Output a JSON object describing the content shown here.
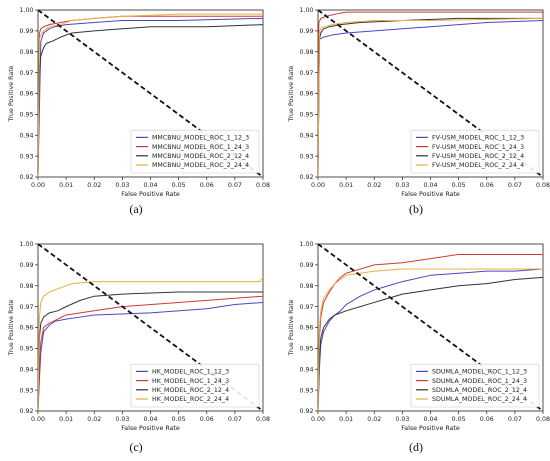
{
  "chart_data": [
    {
      "type": "line",
      "panel": "a",
      "caption": "(a)",
      "xlabel": "False Positive Rate",
      "ylabel": "True Positive Rate",
      "xlim": [
        0.0,
        0.08
      ],
      "ylim": [
        0.92,
        1.0
      ],
      "xticks": [
        0.0,
        0.01,
        0.02,
        0.03,
        0.04,
        0.05,
        0.06,
        0.07,
        0.08
      ],
      "xtick_labels": [
        "0.00",
        "0.01",
        "0.02",
        "0.03",
        "0.04",
        "0.05",
        "0.06",
        "0.07",
        "0.08"
      ],
      "yticks": [
        0.92,
        0.93,
        0.94,
        0.95,
        0.96,
        0.97,
        0.98,
        0.99,
        1.0
      ],
      "ytick_labels": [
        "0.92",
        "0.93",
        "0.94",
        "0.95",
        "0.96",
        "0.97",
        "0.98",
        "0.99",
        "1.00"
      ],
      "legend_position": "lower-right",
      "reference_line": {
        "x": [
          0.0,
          0.08
        ],
        "y": [
          1.0,
          0.92
        ],
        "style": "dashed",
        "color": "#111111"
      },
      "series": [
        {
          "name": "MMCBNU_MODEL_ROC_1_12_3",
          "color": "#4848c0",
          "x": [
            0.0,
            0.001,
            0.002,
            0.004,
            0.006,
            0.01,
            0.02,
            0.03,
            0.05,
            0.08
          ],
          "y": [
            0.92,
            0.985,
            0.989,
            0.991,
            0.992,
            0.993,
            0.994,
            0.995,
            0.995,
            0.996
          ]
        },
        {
          "name": "MMCBNU_MODEL_ROC_1_24_3",
          "color": "#d03838",
          "x": [
            0.0,
            0.0005,
            0.001,
            0.002,
            0.004,
            0.008,
            0.012,
            0.02,
            0.03,
            0.05,
            0.08
          ],
          "y": [
            0.92,
            0.989,
            0.991,
            0.992,
            0.993,
            0.994,
            0.995,
            0.996,
            0.997,
            0.997,
            0.997
          ]
        },
        {
          "name": "MMCBNU_MODEL_ROC_2_12_4",
          "color": "#333333",
          "x": [
            0.0,
            0.0005,
            0.001,
            0.002,
            0.003,
            0.005,
            0.008,
            0.012,
            0.02,
            0.03,
            0.04,
            0.06,
            0.08
          ],
          "y": [
            0.92,
            0.969,
            0.978,
            0.982,
            0.984,
            0.985,
            0.987,
            0.989,
            0.99,
            0.991,
            0.992,
            0.992,
            0.993
          ]
        },
        {
          "name": "MMCBNU_MODEL_ROC_2_24_4",
          "color": "#e8b040",
          "x": [
            0.0,
            0.0005,
            0.001,
            0.002,
            0.004,
            0.008,
            0.012,
            0.02,
            0.03,
            0.05,
            0.08
          ],
          "y": [
            0.92,
            0.986,
            0.988,
            0.99,
            0.992,
            0.993,
            0.995,
            0.996,
            0.997,
            0.998,
            0.998
          ]
        }
      ]
    },
    {
      "type": "line",
      "panel": "b",
      "caption": "(b)",
      "xlabel": "False Positive Rate",
      "ylabel": "True Positive Rate",
      "xlim": [
        0.0,
        0.08
      ],
      "ylim": [
        0.92,
        1.0
      ],
      "xticks": [
        0.0,
        0.01,
        0.02,
        0.03,
        0.04,
        0.05,
        0.06,
        0.07,
        0.08
      ],
      "xtick_labels": [
        "0.00",
        "0.01",
        "0.02",
        "0.03",
        "0.04",
        "0.05",
        "0.06",
        "0.07",
        "0.08"
      ],
      "yticks": [
        0.92,
        0.93,
        0.94,
        0.95,
        0.96,
        0.97,
        0.98,
        0.99,
        1.0
      ],
      "ytick_labels": [
        "0.92",
        "0.93",
        "0.94",
        "0.95",
        "0.96",
        "0.97",
        "0.98",
        "0.99",
        "1.00"
      ],
      "legend_position": "lower-right",
      "reference_line": {
        "x": [
          0.0,
          0.08
        ],
        "y": [
          1.0,
          0.92
        ],
        "style": "dashed",
        "color": "#111111"
      },
      "series": [
        {
          "name": "FV-USM_MODEL_ROC_1_12_3",
          "color": "#4848c0",
          "x": [
            0.0,
            0.0005,
            0.002,
            0.005,
            0.01,
            0.02,
            0.03,
            0.04,
            0.05,
            0.06,
            0.08
          ],
          "y": [
            0.92,
            0.986,
            0.987,
            0.988,
            0.989,
            0.99,
            0.991,
            0.992,
            0.993,
            0.994,
            0.995
          ]
        },
        {
          "name": "FV-USM_MODEL_ROC_1_24_3",
          "color": "#d03838",
          "x": [
            0.0,
            0.0003,
            0.001,
            0.003,
            0.006,
            0.01,
            0.02,
            0.04,
            0.08
          ],
          "y": [
            0.92,
            0.994,
            0.996,
            0.997,
            0.998,
            0.999,
            0.999,
            0.999,
            0.999
          ]
        },
        {
          "name": "FV-USM_MODEL_ROC_2_12_4",
          "color": "#333333",
          "x": [
            0.0,
            0.0005,
            0.001,
            0.002,
            0.004,
            0.008,
            0.015,
            0.03,
            0.05,
            0.08
          ],
          "y": [
            0.92,
            0.986,
            0.989,
            0.991,
            0.992,
            0.993,
            0.994,
            0.995,
            0.996,
            0.996
          ]
        },
        {
          "name": "FV-USM_MODEL_ROC_2_24_4",
          "color": "#e8b040",
          "x": [
            0.0,
            0.0005,
            0.001,
            0.002,
            0.005,
            0.01,
            0.02,
            0.04,
            0.08
          ],
          "y": [
            0.92,
            0.989,
            0.991,
            0.992,
            0.993,
            0.994,
            0.995,
            0.995,
            0.996
          ]
        }
      ]
    },
    {
      "type": "line",
      "panel": "c",
      "caption": "(c)",
      "xlabel": "False Positive Rate",
      "ylabel": "True Positive Rate",
      "xlim": [
        0.0,
        0.08
      ],
      "ylim": [
        0.92,
        1.0
      ],
      "xticks": [
        0.0,
        0.01,
        0.02,
        0.03,
        0.04,
        0.05,
        0.06,
        0.07,
        0.08
      ],
      "xtick_labels": [
        "0.00",
        "0.01",
        "0.02",
        "0.03",
        "0.04",
        "0.05",
        "0.06",
        "0.07",
        "0.08"
      ],
      "yticks": [
        0.92,
        0.93,
        0.94,
        0.95,
        0.96,
        0.97,
        0.98,
        0.99,
        1.0
      ],
      "ytick_labels": [
        "0.92",
        "0.93",
        "0.94",
        "0.95",
        "0.96",
        "0.97",
        "0.98",
        "0.99",
        "1.00"
      ],
      "legend_position": "lower-right",
      "reference_line": {
        "x": [
          0.0,
          0.08
        ],
        "y": [
          1.0,
          0.92
        ],
        "style": "dashed",
        "color": "#111111"
      },
      "series": [
        {
          "name": "HK_MODEL_ROC_1_12_3",
          "color": "#4848c0",
          "x": [
            0.0,
            0.0005,
            0.001,
            0.002,
            0.004,
            0.006,
            0.01,
            0.015,
            0.02,
            0.04,
            0.06,
            0.07,
            0.08
          ],
          "y": [
            0.92,
            0.935,
            0.948,
            0.958,
            0.961,
            0.963,
            0.964,
            0.965,
            0.966,
            0.967,
            0.969,
            0.971,
            0.972
          ]
        },
        {
          "name": "HK_MODEL_ROC_1_24_3",
          "color": "#d03838",
          "x": [
            0.0,
            0.0005,
            0.001,
            0.002,
            0.004,
            0.007,
            0.01,
            0.015,
            0.02,
            0.03,
            0.05,
            0.07,
            0.08
          ],
          "y": [
            0.92,
            0.94,
            0.953,
            0.96,
            0.962,
            0.964,
            0.966,
            0.967,
            0.968,
            0.97,
            0.972,
            0.974,
            0.975
          ]
        },
        {
          "name": "HK_MODEL_ROC_2_12_4",
          "color": "#333333",
          "x": [
            0.0,
            0.0005,
            0.001,
            0.002,
            0.004,
            0.007,
            0.01,
            0.015,
            0.02,
            0.03,
            0.05,
            0.08
          ],
          "y": [
            0.92,
            0.955,
            0.962,
            0.965,
            0.967,
            0.968,
            0.97,
            0.973,
            0.975,
            0.976,
            0.977,
            0.977
          ]
        },
        {
          "name": "HK_MODEL_ROC_2_24_4",
          "color": "#e8b040",
          "x": [
            0.0,
            0.0005,
            0.001,
            0.002,
            0.004,
            0.008,
            0.012,
            0.02,
            0.04,
            0.06,
            0.079,
            0.08
          ],
          "y": [
            0.92,
            0.965,
            0.972,
            0.975,
            0.977,
            0.979,
            0.981,
            0.982,
            0.982,
            0.982,
            0.982,
            0.984
          ]
        }
      ]
    },
    {
      "type": "line",
      "panel": "d",
      "caption": "(d)",
      "xlabel": "False Positive Rate",
      "ylabel": "True Positive Rate",
      "xlim": [
        0.0,
        0.08
      ],
      "ylim": [
        0.92,
        1.0
      ],
      "xticks": [
        0.0,
        0.01,
        0.02,
        0.03,
        0.04,
        0.05,
        0.06,
        0.07,
        0.08
      ],
      "xtick_labels": [
        "0.00",
        "0.01",
        "0.02",
        "0.03",
        "0.04",
        "0.05",
        "0.06",
        "0.07",
        "0.08"
      ],
      "yticks": [
        0.92,
        0.93,
        0.94,
        0.95,
        0.96,
        0.97,
        0.98,
        0.99,
        1.0
      ],
      "ytick_labels": [
        "0.92",
        "0.93",
        "0.94",
        "0.95",
        "0.96",
        "0.97",
        "0.98",
        "0.99",
        "1.00"
      ],
      "legend_position": "lower-right",
      "reference_line": {
        "x": [
          0.0,
          0.08
        ],
        "y": [
          1.0,
          0.92
        ],
        "style": "dashed",
        "color": "#111111"
      },
      "series": [
        {
          "name": "SDUMLA_MODEL_ROC_1_12_3",
          "color": "#4848c0",
          "x": [
            0.0,
            0.0005,
            0.001,
            0.002,
            0.004,
            0.006,
            0.008,
            0.01,
            0.015,
            0.02,
            0.03,
            0.04,
            0.05,
            0.06,
            0.07,
            0.08
          ],
          "y": [
            0.92,
            0.94,
            0.952,
            0.958,
            0.963,
            0.966,
            0.968,
            0.971,
            0.975,
            0.978,
            0.982,
            0.985,
            0.986,
            0.987,
            0.987,
            0.988
          ]
        },
        {
          "name": "SDUMLA_MODEL_ROC_1_24_3",
          "color": "#d03838",
          "x": [
            0.0,
            0.0005,
            0.001,
            0.002,
            0.004,
            0.006,
            0.008,
            0.01,
            0.015,
            0.02,
            0.03,
            0.04,
            0.05,
            0.06,
            0.08
          ],
          "y": [
            0.92,
            0.955,
            0.965,
            0.972,
            0.977,
            0.981,
            0.984,
            0.986,
            0.988,
            0.99,
            0.991,
            0.993,
            0.995,
            0.995,
            0.995
          ]
        },
        {
          "name": "SDUMLA_MODEL_ROC_2_12_4",
          "color": "#333333",
          "x": [
            0.0,
            0.0005,
            0.001,
            0.002,
            0.004,
            0.006,
            0.01,
            0.015,
            0.02,
            0.03,
            0.04,
            0.05,
            0.06,
            0.07,
            0.08
          ],
          "y": [
            0.92,
            0.945,
            0.955,
            0.96,
            0.964,
            0.966,
            0.968,
            0.97,
            0.972,
            0.976,
            0.978,
            0.98,
            0.981,
            0.983,
            0.984
          ]
        },
        {
          "name": "SDUMLA_MODEL_ROC_2_24_4",
          "color": "#e8b040",
          "x": [
            0.0,
            0.0005,
            0.001,
            0.002,
            0.004,
            0.006,
            0.008,
            0.01,
            0.015,
            0.02,
            0.03,
            0.04,
            0.05,
            0.06,
            0.08
          ],
          "y": [
            0.92,
            0.96,
            0.968,
            0.974,
            0.978,
            0.981,
            0.983,
            0.985,
            0.986,
            0.987,
            0.988,
            0.988,
            0.988,
            0.988,
            0.988
          ]
        }
      ]
    }
  ]
}
